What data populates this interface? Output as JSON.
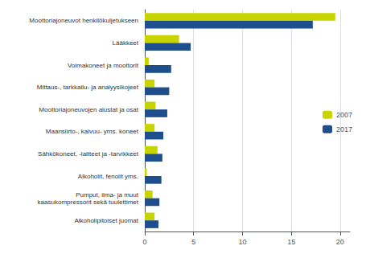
{
  "chart_data": {
    "type": "bar",
    "orientation": "horizontal",
    "categories": [
      "Moottoriajoneuvot henkilökuljetukseen",
      "Lääkkeet",
      "Voimakoneet ja moottorit",
      "Mittaus-, tarkkailu- ja analyysikojeet",
      "Moottoriajoneuvojen alustat ja osat",
      "Maansiirto-, kaivuu- yms. koneet",
      "Sähkökoneet, -laitteet ja -tarvikkeet",
      "Alkoholit, fenolit yms.",
      "Pumput, ilma- ja muut\nkaasukompressorit sekä tuulettimet",
      "Alkoholipitoiset juomat"
    ],
    "series": [
      {
        "name": "2007",
        "color": "#c8d400",
        "values": [
          19.5,
          3.5,
          0.4,
          1.0,
          1.1,
          1.0,
          1.3,
          0.2,
          0.8,
          1.0
        ]
      },
      {
        "name": "2017",
        "color": "#1f4e8c",
        "values": [
          17.2,
          4.7,
          2.7,
          2.5,
          2.3,
          1.9,
          1.8,
          1.7,
          1.5,
          1.4
        ]
      }
    ],
    "xlim": [
      0,
      21
    ],
    "xticks": [
      0,
      5,
      10,
      15,
      20
    ],
    "grid": true,
    "legend": "right"
  }
}
